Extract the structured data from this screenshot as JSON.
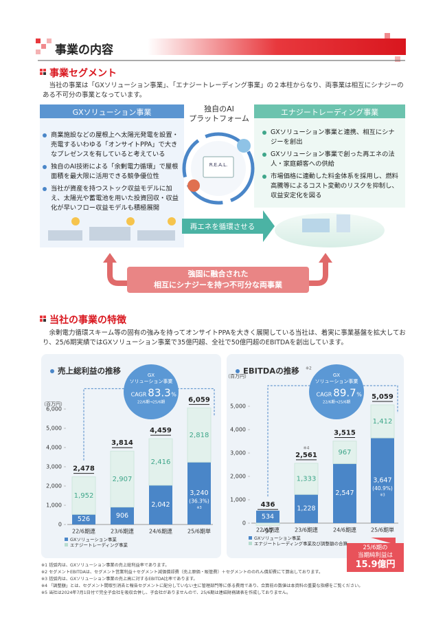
{
  "header": {
    "title": "事業の内容"
  },
  "segment": {
    "heading": "事業セグメント",
    "intro": "当社の事業は「GXソリューション事業」、「エナジートレーディング事業」の２本柱からなり、両事業は相互にシナジーのある不可分の事業となっています。",
    "gx": {
      "title": "GXソリューション事業",
      "bullets": [
        "商業施設などの屋根上へ太陽光発電を設置・売電するいわゆる「オンサイトPPA」で大きなプレゼンスを有していると考えている",
        "独自のAI技術による「余剰電力循環」で屋根面積を最大限に活用できる競争優位性",
        "当社が資産を持つストック収益モデルに加え、太陽光や蓄電池を用いた投資回収・収益化が早いフロー収益モデルも積極展開"
      ]
    },
    "platform": [
      "独自のAI",
      "プラットフォーム"
    ],
    "logo": "R.E.A.L.",
    "trading": {
      "title": "エナジートレーディング事業",
      "bullets": [
        "GXソリューション事業と連携、相互にシナジーを創出",
        "GXソリューション事業で創った再エネの法人・家庭顧客への供給",
        "市場価格に連動した料金体系を採用し、燃料高騰等によるコスト変動のリスクを抑制し、収益安定化を図る"
      ]
    },
    "cycle": "再エネを循環させる",
    "bond": [
      "強固に融合された",
      "相互にシナジーを持つ不可分な両事業"
    ]
  },
  "features": {
    "heading": "当社の事業の特徴",
    "intro": "余剰電力循環スキーム等の固有の強みを持ってオンサイトPPAを大きく展開している当社は、着実に事業基盤を拡大しており、25/6期実績ではGXソリューション事業で35億円超、全社で50億円超のEBITDAを創出しています。"
  },
  "chart_data": [
    {
      "type": "stacked_bar",
      "title": "売上総利益の推移",
      "unit": "（百万円）",
      "categories": [
        "22/6期連",
        "23/6期連",
        "24/6期連",
        "25/6期単"
      ],
      "series": [
        {
          "name": "GXソリューション事業",
          "color": "#4a86c8",
          "values": [
            526,
            906,
            2042,
            3240
          ],
          "value_labels": [
            "526",
            "906",
            "2,042",
            "3,240"
          ]
        },
        {
          "name": "エナジートレーディング事業",
          "color": "#e2f1ec",
          "values": [
            1952,
            2907,
            2416,
            2818
          ],
          "value_labels": [
            "1,952",
            "2,907",
            "2,416",
            "2,818"
          ]
        }
      ],
      "totals": [
        2478,
        3814,
        4459,
        6059
      ],
      "total_labels": [
        "2,478",
        "3,814",
        "4,459",
        "6,059"
      ],
      "total_notes": [
        null,
        null,
        null,
        null
      ],
      "ratio": {
        "label": "(36.3%)",
        "note": "※3"
      },
      "cagr": {
        "lines": [
          "GX",
          "ソリューション事業"
        ],
        "label": "CAGR",
        "value": "83.3",
        "unit": "%",
        "period": "22/6期→25/6期"
      },
      "ylim": [
        0,
        6500
      ],
      "yticks": [
        0,
        {
          "value": 1000,
          "label": "1,000"
        },
        {
          "value": 2000,
          "label": "2,000"
        },
        {
          "value": 3000,
          "label": "3,000"
        },
        {
          "value": 4000,
          "label": "4,000"
        },
        {
          "value": 5000,
          "label": "5,000"
        },
        {
          "value": 6000,
          "label": "6,000"
        }
      ]
    },
    {
      "type": "stacked_bar",
      "title": "EBITDAの推移",
      "title_note": "※2",
      "unit": "（百万円）",
      "categories": [
        "22/6期連",
        "23/6期連",
        "24/6期連",
        "25/6期単"
      ],
      "series": [
        {
          "name": "GXソリューション事業",
          "color": "#4a86c8",
          "values": [
            534,
            1228,
            2547,
            3647
          ],
          "value_labels": [
            "534",
            "1,228",
            "2,547",
            "3,647"
          ]
        },
        {
          "name": "エナジートレーディング事業及び調整額の合算",
          "color": "#e2f1ec",
          "values": [
            -97,
            1333,
            967,
            1412
          ],
          "value_labels": [
            "-97",
            "1,333",
            "967",
            "1,412"
          ]
        }
      ],
      "totals": [
        436,
        2561,
        3515,
        5059
      ],
      "total_labels": [
        "436",
        "2,561",
        "3,515",
        "5,059"
      ],
      "total_notes": [
        null,
        "※4",
        null,
        null
      ],
      "ratio": {
        "label": "(40.9%)",
        "note": "※3"
      },
      "cagr": {
        "lines": [
          "GX",
          "ソリューション事業"
        ],
        "label": "CAGR",
        "value": "89.7",
        "unit": "%",
        "period": "22/6期→25/6期"
      },
      "ylim": [
        0,
        5400
      ],
      "yticks": [
        0,
        {
          "value": 1000,
          "label": "1,000"
        },
        {
          "value": 2000,
          "label": "2,000"
        },
        {
          "value": 3000,
          "label": "3,000"
        },
        {
          "value": 4000,
          "label": "4,000"
        },
        {
          "value": 5000,
          "label": "5,000"
        }
      ]
    }
  ],
  "callout": [
    "25/6期の",
    "当期純利益は",
    "15.9億円"
  ],
  "footnotes": [
    "※1 括弧内は、GXソリューション事業の売上総利益率であります。",
    "※2 セグメントEBITDAは、セグメント営業利益＋セグメント減価償却費（売上原価・販管費）＋セグメントののれん償却費にて算出しております。",
    "※3 括弧内は、GXソリューション事業の売上高に対するEBITDA比率であります。",
    "※4 「調整額」とは、セグメント間取引消去と報告セグメントに配分していない主に管理部門等に係る費用であり、合算前の数値は本資料の重要な指標をご覧ください。",
    "※5 当社は2024年7月1日付で完全子会社を吸収合併し、子会社がありませんので、25/6期は連結財務諸表を作成しておりません。"
  ]
}
